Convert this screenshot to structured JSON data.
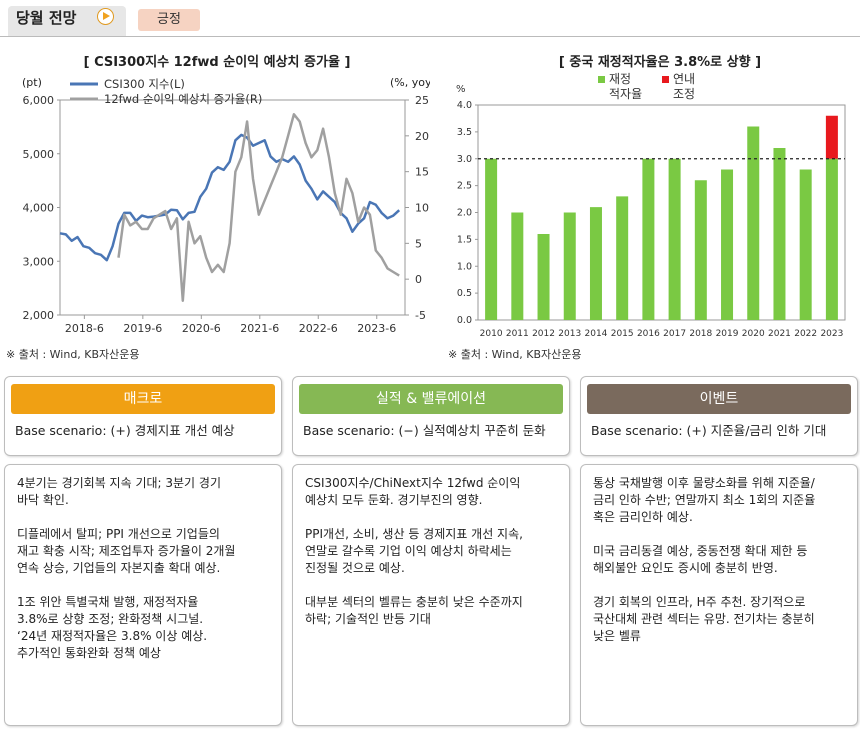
{
  "header": {
    "title": "당월 전망",
    "badge": "긍정"
  },
  "chart_data": [
    {
      "type": "line",
      "title": "[ CSI300지수 12fwd 순이익 예상치 증가율 ]",
      "y_left_unit": "(pt)",
      "y_right_unit": "(%, yoy)",
      "ylim_left": [
        2000,
        6000
      ],
      "ylim_right": [
        -5,
        25
      ],
      "y_left_ticks": [
        "2,000",
        "3,000",
        "4,000",
        "5,000",
        "6,000"
      ],
      "y_right_ticks": [
        "-5",
        "0",
        "5",
        "10",
        "15",
        "20",
        "25"
      ],
      "x_ticks": [
        "2018-6",
        "2019-6",
        "2020-6",
        "2021-6",
        "2022-6",
        "2023-6"
      ],
      "series": [
        {
          "name": "CSI300 지수(L)",
          "axis": "left",
          "color": "#4a76b5",
          "x": [
            2018.0,
            2018.1,
            2018.2,
            2018.3,
            2018.4,
            2018.5,
            2018.6,
            2018.7,
            2018.8,
            2018.9,
            2019.0,
            2019.1,
            2019.2,
            2019.3,
            2019.4,
            2019.5,
            2019.6,
            2019.7,
            2019.8,
            2019.9,
            2020.0,
            2020.1,
            2020.2,
            2020.3,
            2020.4,
            2020.5,
            2020.6,
            2020.7,
            2020.8,
            2020.9,
            2021.0,
            2021.1,
            2021.2,
            2021.3,
            2021.4,
            2021.5,
            2021.6,
            2021.7,
            2021.8,
            2021.9,
            2022.0,
            2022.1,
            2022.2,
            2022.3,
            2022.4,
            2022.5,
            2022.6,
            2022.7,
            2022.8,
            2022.9,
            2023.0,
            2023.1,
            2023.2,
            2023.3,
            2023.4,
            2023.5,
            2023.6,
            2023.7,
            2023.8
          ],
          "values": [
            3520,
            3500,
            3380,
            3450,
            3280,
            3250,
            3150,
            3120,
            3020,
            3280,
            3700,
            3900,
            3900,
            3750,
            3850,
            3820,
            3830,
            3850,
            3870,
            3960,
            3950,
            3780,
            3900,
            3920,
            4200,
            4350,
            4650,
            4750,
            4700,
            4850,
            5250,
            5350,
            5300,
            5150,
            5200,
            5250,
            4950,
            4850,
            4900,
            4850,
            4950,
            4800,
            4500,
            4350,
            4150,
            4300,
            4200,
            4100,
            3900,
            3800,
            3550,
            3700,
            3800,
            4100,
            4050,
            3900,
            3800,
            3850,
            3950
          ]
        },
        {
          "name": "12fwd 순이익 예상치 증가율(R)",
          "axis": "right",
          "color": "#a0a0a0",
          "x": [
            2019.0,
            2019.1,
            2019.2,
            2019.3,
            2019.4,
            2019.5,
            2019.6,
            2019.7,
            2019.8,
            2019.9,
            2020.0,
            2020.1,
            2020.2,
            2020.3,
            2020.4,
            2020.5,
            2020.6,
            2020.7,
            2020.8,
            2020.9,
            2021.0,
            2021.1,
            2021.2,
            2021.3,
            2021.4,
            2021.5,
            2021.6,
            2021.7,
            2021.8,
            2021.9,
            2022.0,
            2022.1,
            2022.2,
            2022.3,
            2022.4,
            2022.5,
            2022.6,
            2022.7,
            2022.8,
            2022.9,
            2023.0,
            2023.1,
            2023.2,
            2023.3,
            2023.4,
            2023.5,
            2023.6,
            2023.7,
            2023.8
          ],
          "values": [
            3,
            9,
            7.5,
            8,
            7,
            7,
            8.5,
            9,
            9.5,
            7,
            8.5,
            -3,
            8,
            5,
            6,
            3,
            1,
            2,
            1,
            5,
            15,
            17,
            22,
            14,
            9,
            11,
            13,
            15,
            17,
            20,
            23,
            22,
            19,
            17,
            18,
            21,
            17,
            12,
            9,
            14,
            12,
            8,
            10,
            9,
            4,
            3,
            1.5,
            1,
            0.5
          ]
        }
      ]
    },
    {
      "type": "bar",
      "title": "[ 중국 재정적자율은 3.8%로 상향 ]",
      "y_unit": "%",
      "ylim": [
        0.0,
        4.0
      ],
      "y_ticks": [
        "0.0",
        "0.5",
        "1.0",
        "1.5",
        "2.0",
        "2.5",
        "3.0",
        "3.5",
        "4.0"
      ],
      "categories": [
        "2010",
        "2011",
        "2012",
        "2013",
        "2014",
        "2015",
        "2016",
        "2017",
        "2018",
        "2019",
        "2020",
        "2021",
        "2022",
        "2023"
      ],
      "series": [
        {
          "name": "재정 적자율",
          "color": "#7ac943",
          "values": [
            3.0,
            2.0,
            1.6,
            2.0,
            2.1,
            2.3,
            3.0,
            3.0,
            2.6,
            2.8,
            3.6,
            3.2,
            2.8,
            3.0
          ]
        },
        {
          "name": "연내 조정",
          "color": "#e8191e",
          "values": [
            0,
            0,
            0,
            0,
            0,
            0,
            0,
            0,
            0,
            0,
            0,
            0,
            0,
            0.8
          ]
        }
      ],
      "reference_line": 3.0
    }
  ],
  "sources": {
    "left": "※ 출처 : Wind, KB자산운용",
    "right": "※ 출처 : Wind, KB자산운용"
  },
  "columns": [
    {
      "header": "매크로",
      "color": "#f0a013",
      "base": "Base scenario: (+) 경제지표 개선 예상",
      "body": "4분기는 경기회복 지속 기대; 3분기 경기\n바닥 확인.\n\n디플레에서 탈피; PPI 개선으로 기업들의\n재고 확충 시작; 제조업투자 증가율이 2개월\n연속 상승, 기업들의 자본지출 확대 예상.\n\n1조 위안 특별국채 발행, 재정적자율\n3.8%로 상향 조정; 완화정책 시그널.\n‘24년 재정적자율은 3.8% 이상 예상.\n추가적인 통화완화 정책 예상"
    },
    {
      "header": "실적 & 밸류에이션",
      "color": "#86b854",
      "base": "Base scenario: (−) 실적예상치 꾸준히 둔화",
      "body": "CSI300지수/ChiNext지수 12fwd 순이익\n예상치 모두 둔화. 경기부진의 영향.\n\nPPI개선, 소비, 생산 등 경제지표 개선 지속,\n연말로 갈수록 기업 이익 예상치 하락세는\n진정될 것으로 예상.\n\n대부분 섹터의 벨류는 충분히 낮은 수준까지\n하락; 기술적인 반등 기대"
    },
    {
      "header": "이벤트",
      "color": "#7a6a5d",
      "base": "Base scenario: (+) 지준율/금리 인하 기대",
      "body": "통상 국채발행 이후 물량소화를 위해 지준율/\n금리 인하 수반; 연말까지 최소 1회의 지준율\n혹은 금리인하 예상.\n\n미국 금리동결 예상, 중동전쟁 확대 제한 등\n해외불안 요인도 증시에 충분히 반영.\n\n경기 회복의 인프라, H주 추천. 장기적으로\n국산대체 관련 섹터는 유망. 전기차는 충분히\n낮은 벨류"
    }
  ]
}
